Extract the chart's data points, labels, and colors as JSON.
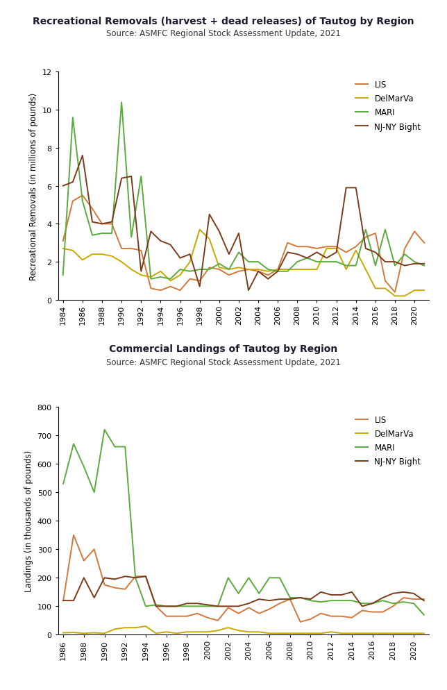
{
  "rec_title": "Recreational Removals (harvest + dead releases) of Tautog by Region",
  "rec_source": "Source: ASMFC Regional Stock Assessment Update, 2021",
  "rec_ylabel": "Recreational Removals (in millions of pounds)",
  "rec_ylim": [
    0,
    12
  ],
  "rec_yticks": [
    0,
    2,
    4,
    6,
    8,
    10,
    12
  ],
  "rec_years": [
    1984,
    1985,
    1986,
    1987,
    1988,
    1989,
    1990,
    1991,
    1992,
    1993,
    1994,
    1995,
    1996,
    1997,
    1998,
    1999,
    2000,
    2001,
    2002,
    2003,
    2004,
    2005,
    2006,
    2007,
    2008,
    2009,
    2010,
    2011,
    2012,
    2013,
    2014,
    2015,
    2016,
    2017,
    2018,
    2019,
    2020,
    2021
  ],
  "rec_LIS": [
    3.1,
    5.2,
    5.5,
    4.8,
    4.0,
    4.0,
    2.7,
    2.7,
    2.6,
    0.6,
    0.5,
    0.7,
    0.5,
    1.1,
    1.0,
    1.7,
    1.6,
    1.3,
    1.5,
    1.6,
    1.5,
    1.3,
    1.6,
    3.0,
    2.8,
    2.8,
    2.7,
    2.8,
    2.8,
    2.5,
    2.8,
    3.3,
    3.5,
    1.0,
    0.4,
    2.7,
    3.6,
    3.0
  ],
  "rec_DelMarVa": [
    2.7,
    2.6,
    2.1,
    2.4,
    2.4,
    2.3,
    2.0,
    1.6,
    1.3,
    1.2,
    1.5,
    1.0,
    1.3,
    2.0,
    3.7,
    3.2,
    1.7,
    1.6,
    1.7,
    1.6,
    1.6,
    1.5,
    1.6,
    1.6,
    1.6,
    1.6,
    1.6,
    2.7,
    2.7,
    1.6,
    2.6,
    1.6,
    0.6,
    0.6,
    0.2,
    0.2,
    0.5,
    0.5
  ],
  "rec_MARI": [
    1.3,
    9.6,
    5.2,
    3.4,
    3.5,
    3.5,
    10.4,
    3.3,
    6.5,
    1.1,
    1.2,
    1.1,
    1.6,
    1.5,
    1.6,
    1.6,
    1.9,
    1.6,
    2.5,
    2.0,
    2.0,
    1.6,
    1.5,
    1.5,
    2.0,
    2.2,
    2.0,
    2.0,
    2.0,
    1.8,
    1.8,
    3.7,
    1.8,
    3.7,
    1.8,
    2.4,
    2.0,
    1.8
  ],
  "rec_NJNY": [
    6.0,
    6.2,
    7.6,
    4.1,
    4.0,
    4.1,
    6.4,
    6.5,
    1.5,
    3.6,
    3.1,
    2.9,
    2.2,
    2.4,
    0.7,
    4.5,
    3.6,
    2.4,
    3.5,
    0.5,
    1.5,
    1.1,
    1.5,
    2.5,
    2.4,
    2.2,
    2.5,
    2.2,
    2.5,
    5.9,
    5.9,
    2.7,
    2.5,
    2.0,
    2.0,
    1.8,
    1.9,
    1.9
  ],
  "com_title": "Commercial Landings of Tautog by Region",
  "com_source": "Source: ASMFC Regional Stock Assessment Update, 2021",
  "com_ylabel": "Landings (in thousands of pounds)",
  "com_ylim": [
    0,
    800
  ],
  "com_yticks": [
    0,
    100,
    200,
    300,
    400,
    500,
    600,
    700,
    800
  ],
  "com_years": [
    1986,
    1987,
    1988,
    1989,
    1990,
    1991,
    1992,
    1993,
    1994,
    1995,
    1996,
    1997,
    1998,
    1999,
    2000,
    2001,
    2002,
    2003,
    2004,
    2005,
    2006,
    2007,
    2008,
    2009,
    2010,
    2011,
    2012,
    2013,
    2014,
    2015,
    2016,
    2017,
    2018,
    2019,
    2020,
    2021
  ],
  "com_LIS": [
    120,
    350,
    260,
    300,
    175,
    165,
    160,
    205,
    205,
    100,
    65,
    65,
    65,
    75,
    60,
    50,
    95,
    75,
    95,
    75,
    90,
    110,
    125,
    45,
    55,
    75,
    65,
    65,
    60,
    85,
    80,
    80,
    100,
    130,
    125,
    125
  ],
  "com_DelMarVa": [
    7,
    8,
    5,
    7,
    5,
    20,
    25,
    25,
    30,
    5,
    10,
    5,
    10,
    10,
    10,
    15,
    25,
    15,
    10,
    10,
    5,
    5,
    5,
    5,
    5,
    5,
    10,
    5,
    5,
    5,
    5,
    5,
    5,
    5,
    5,
    5
  ],
  "com_MARI": [
    530,
    670,
    590,
    500,
    720,
    660,
    660,
    200,
    100,
    105,
    100,
    100,
    100,
    100,
    100,
    100,
    200,
    145,
    200,
    145,
    200,
    200,
    130,
    130,
    120,
    115,
    120,
    120,
    120,
    110,
    110,
    120,
    110,
    115,
    110,
    70
  ],
  "com_NJNY": [
    120,
    120,
    200,
    130,
    200,
    195,
    205,
    200,
    205,
    100,
    100,
    100,
    110,
    110,
    105,
    100,
    100,
    100,
    110,
    125,
    120,
    125,
    125,
    130,
    125,
    150,
    140,
    140,
    150,
    100,
    110,
    130,
    145,
    150,
    145,
    120
  ],
  "color_LIS": "#d4773a",
  "color_DelMarVa": "#c8a800",
  "color_MARI": "#5aaa3c",
  "color_NJNY": "#7b3b1a",
  "title_color": "#1a1a2e",
  "source_color": "#333333"
}
